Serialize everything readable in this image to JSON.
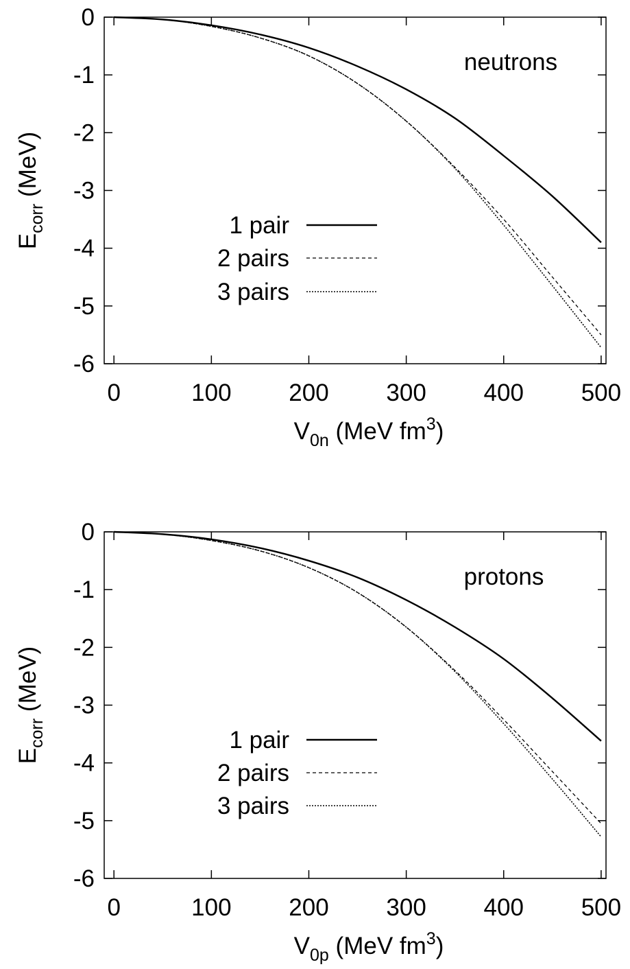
{
  "chart_data": [
    {
      "type": "line",
      "annotation": "neutrons",
      "xlabel": {
        "main": "V",
        "sub": "0n",
        "text1": " (MeV fm",
        "sup": "3",
        "text2": ")"
      },
      "ylabel": {
        "main": "E",
        "sub": "corr",
        "text": " (MeV)"
      },
      "xlim": [
        -10,
        505
      ],
      "ylim": [
        -6,
        0
      ],
      "xticks": [
        0,
        100,
        200,
        300,
        400,
        500
      ],
      "xtick_labels": [
        "0",
        "100",
        "200",
        "300",
        "400",
        "500"
      ],
      "yticks": [
        0,
        -1,
        -2,
        -3,
        -4,
        -5,
        -6
      ],
      "ytick_labels": [
        "0",
        "-1",
        "-2",
        "-3",
        "-4",
        "-5",
        "-6"
      ],
      "grid": false,
      "legend_position": "center-left",
      "series": [
        {
          "name": "1 pair",
          "style": "solid",
          "x": [
            0,
            50,
            100,
            150,
            200,
            250,
            300,
            350,
            400,
            450,
            500
          ],
          "y": [
            0,
            -0.04,
            -0.14,
            -0.3,
            -0.53,
            -0.85,
            -1.25,
            -1.75,
            -2.4,
            -3.1,
            -3.9
          ]
        },
        {
          "name": "2 pairs",
          "style": "dashed",
          "x": [
            0,
            50,
            100,
            150,
            200,
            250,
            300,
            350,
            400,
            450,
            500
          ],
          "y": [
            0,
            -0.04,
            -0.16,
            -0.36,
            -0.67,
            -1.15,
            -1.8,
            -2.6,
            -3.5,
            -4.5,
            -5.5
          ]
        },
        {
          "name": "3 pairs",
          "style": "dotted",
          "x": [
            0,
            50,
            100,
            150,
            200,
            250,
            300,
            350,
            400,
            450,
            500
          ],
          "y": [
            0,
            -0.04,
            -0.16,
            -0.36,
            -0.67,
            -1.15,
            -1.8,
            -2.62,
            -3.6,
            -4.65,
            -5.72
          ]
        }
      ]
    },
    {
      "type": "line",
      "annotation": "protons",
      "xlabel": {
        "main": "V",
        "sub": "0p",
        "text1": " (MeV fm",
        "sup": "3",
        "text2": ")"
      },
      "ylabel": {
        "main": "E",
        "sub": "corr",
        "text": " (MeV)"
      },
      "xlim": [
        -10,
        505
      ],
      "ylim": [
        -6,
        0
      ],
      "xticks": [
        0,
        100,
        200,
        300,
        400,
        500
      ],
      "xtick_labels": [
        "0",
        "100",
        "200",
        "300",
        "400",
        "500"
      ],
      "yticks": [
        0,
        -1,
        -2,
        -3,
        -4,
        -5,
        -6
      ],
      "ytick_labels": [
        "0",
        "-1",
        "-2",
        "-3",
        "-4",
        "-5",
        "-6"
      ],
      "grid": false,
      "legend_position": "center-left",
      "series": [
        {
          "name": "1 pair",
          "style": "solid",
          "x": [
            0,
            50,
            100,
            150,
            200,
            250,
            300,
            350,
            400,
            450,
            500
          ],
          "y": [
            0,
            -0.04,
            -0.13,
            -0.28,
            -0.5,
            -0.79,
            -1.18,
            -1.65,
            -2.2,
            -2.88,
            -3.62
          ]
        },
        {
          "name": "2 pairs",
          "style": "dashed",
          "x": [
            0,
            50,
            100,
            150,
            200,
            250,
            300,
            350,
            400,
            450,
            500
          ],
          "y": [
            0,
            -0.04,
            -0.15,
            -0.33,
            -0.62,
            -1.05,
            -1.65,
            -2.4,
            -3.25,
            -4.15,
            -5.05
          ]
        },
        {
          "name": "3 pairs",
          "style": "dotted",
          "x": [
            0,
            50,
            100,
            150,
            200,
            250,
            300,
            350,
            400,
            450,
            500
          ],
          "y": [
            0,
            -0.04,
            -0.15,
            -0.33,
            -0.62,
            -1.05,
            -1.65,
            -2.42,
            -3.32,
            -4.28,
            -5.28
          ]
        }
      ]
    }
  ]
}
